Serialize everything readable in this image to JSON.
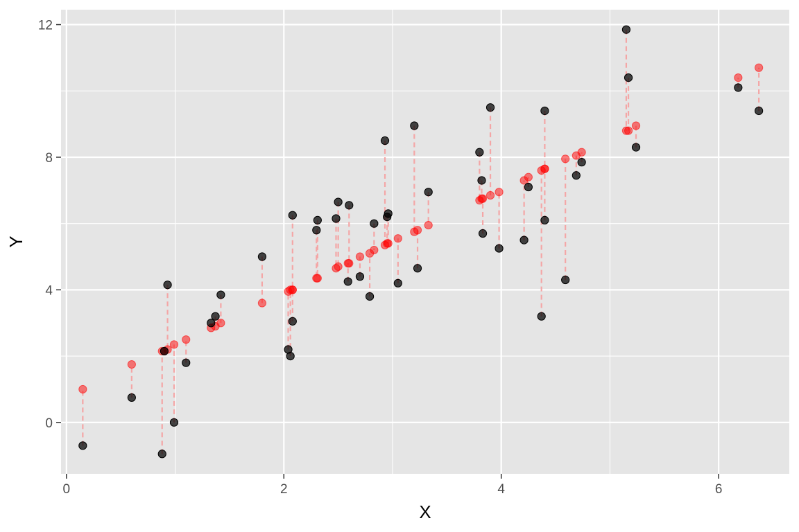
{
  "chart_data": {
    "type": "scatter",
    "title": "",
    "xlabel": "X",
    "ylabel": "Y",
    "xlim": [
      -0.05,
      6.65
    ],
    "ylim": [
      -1.55,
      12.45
    ],
    "x_ticks": [
      0,
      2,
      4,
      6
    ],
    "y_ticks": [
      0,
      4,
      8,
      12
    ],
    "x_tick_labels": [
      "0",
      "2",
      "4",
      "6"
    ],
    "y_tick_labels": [
      "0",
      "4",
      "8",
      "12"
    ],
    "grid": true,
    "colors": {
      "panel": "#e5e5e5",
      "grid": "#ffffff",
      "observed": "#000000",
      "fitted": "#ff0000",
      "residual": "#f4a6a6"
    },
    "series": [
      {
        "role": "observed",
        "x": [
          0.15,
          0.6,
          0.88,
          0.9,
          0.93,
          0.99,
          1.1,
          1.33,
          1.37,
          1.42,
          1.8,
          2.04,
          2.06,
          2.08,
          2.08,
          2.3,
          2.31,
          2.48,
          2.5,
          2.59,
          2.6,
          2.7,
          2.79,
          2.83,
          2.93,
          2.95,
          2.96,
          3.05,
          3.2,
          3.23,
          3.33,
          3.8,
          3.82,
          3.83,
          3.9,
          3.98,
          4.21,
          4.25,
          4.37,
          4.4,
          4.4,
          4.59,
          4.69,
          4.74,
          5.15,
          5.17,
          5.24,
          6.18,
          6.37
        ],
        "y": [
          -0.7,
          0.75,
          -0.95,
          2.15,
          4.15,
          0.0,
          1.8,
          3.0,
          3.2,
          3.85,
          5.0,
          2.2,
          2.0,
          6.25,
          3.05,
          5.8,
          6.1,
          6.15,
          6.65,
          4.25,
          6.55,
          4.4,
          3.8,
          6.0,
          8.5,
          6.2,
          6.3,
          4.2,
          8.95,
          4.65,
          6.95,
          8.15,
          7.3,
          5.7,
          9.5,
          5.25,
          5.5,
          7.1,
          3.2,
          9.4,
          6.1,
          4.3,
          7.45,
          7.85,
          11.85,
          10.4,
          8.3,
          10.1,
          9.4
        ]
      },
      {
        "role": "fitted",
        "x": [
          0.15,
          0.6,
          0.88,
          0.9,
          0.93,
          0.99,
          1.1,
          1.33,
          1.37,
          1.42,
          1.8,
          2.04,
          2.06,
          2.08,
          2.08,
          2.3,
          2.31,
          2.48,
          2.5,
          2.59,
          2.6,
          2.7,
          2.79,
          2.83,
          2.93,
          2.95,
          2.96,
          3.05,
          3.2,
          3.23,
          3.33,
          3.8,
          3.82,
          3.83,
          3.9,
          3.98,
          4.21,
          4.25,
          4.37,
          4.4,
          4.4,
          4.59,
          4.69,
          4.74,
          5.15,
          5.17,
          5.24,
          6.18,
          6.37
        ],
        "y": [
          1.0,
          1.75,
          2.15,
          2.15,
          2.2,
          2.35,
          2.5,
          2.85,
          2.9,
          3.0,
          3.6,
          3.95,
          4.0,
          4.0,
          4.0,
          4.35,
          4.35,
          4.65,
          4.7,
          4.8,
          4.8,
          5.0,
          5.1,
          5.2,
          5.35,
          5.4,
          5.4,
          5.55,
          5.75,
          5.8,
          5.95,
          6.7,
          6.75,
          6.75,
          6.85,
          6.95,
          7.3,
          7.4,
          7.6,
          7.65,
          7.65,
          7.95,
          8.05,
          8.15,
          8.8,
          8.8,
          8.95,
          10.4,
          10.7
        ]
      }
    ]
  }
}
